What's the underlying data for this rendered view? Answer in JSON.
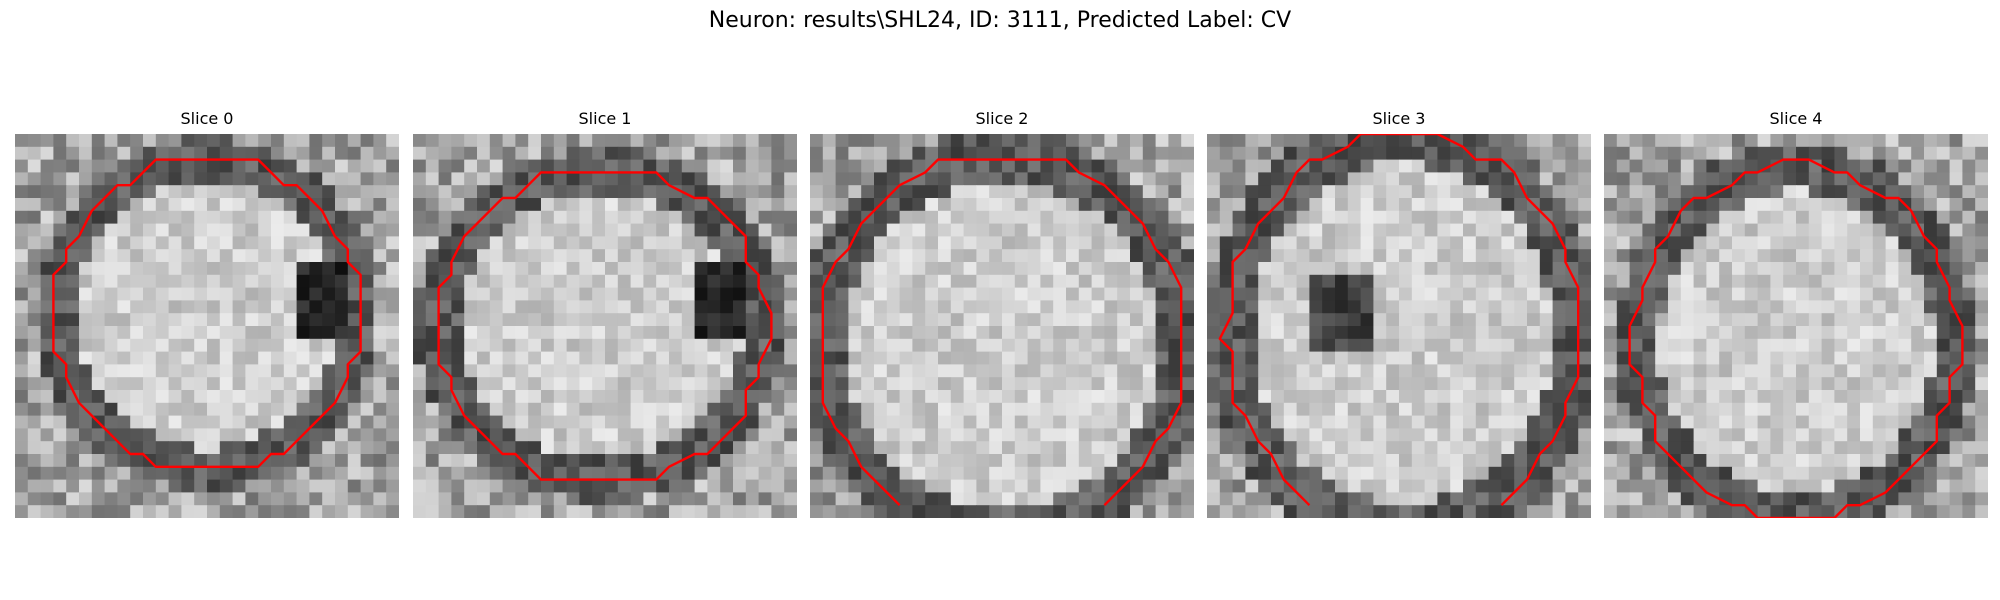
{
  "figure": {
    "title": "Neuron: results\\SHL24, ID: 3111, Predicted Label: CV"
  },
  "panels": [
    {
      "title": "Slice 0",
      "dark_spot": "right",
      "seed": 11
    },
    {
      "title": "Slice 1",
      "dark_spot": "right",
      "seed": 23
    },
    {
      "title": "Slice 2",
      "dark_spot": "none",
      "seed": 37
    },
    {
      "title": "Slice 3",
      "dark_spot": "left",
      "seed": 53
    },
    {
      "title": "Slice 4",
      "dark_spot": "none",
      "seed": 71
    }
  ],
  "colors": {
    "contour": "#ff0000",
    "background": "#ffffff"
  },
  "image_grid": "30x30 grayscale"
}
